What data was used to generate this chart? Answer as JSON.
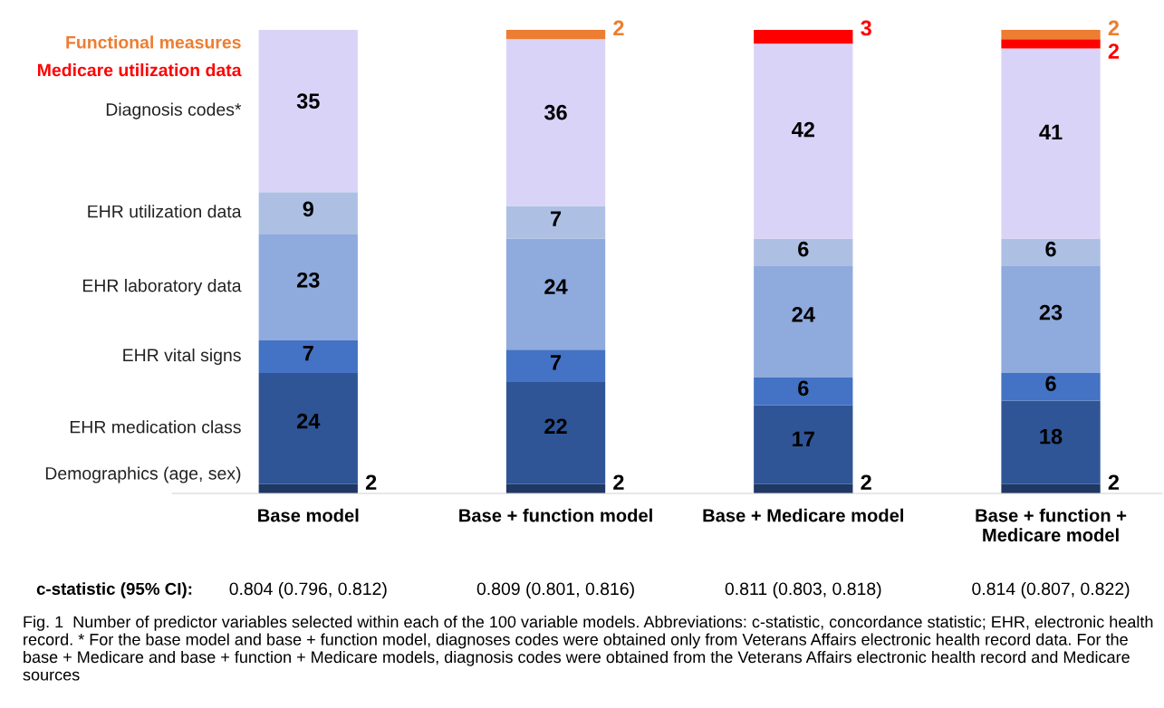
{
  "chart_data": {
    "type": "bar",
    "stacked": true,
    "data_labels": true,
    "legend": "left",
    "categories": [
      "Base model",
      "Base + function model",
      "Base + Medicare model",
      "Base + function +\nMedicare model"
    ],
    "series": [
      {
        "name": "Demographics (age, sex)",
        "color": "#1f3864",
        "values": [
          2,
          2,
          2,
          2
        ]
      },
      {
        "name": "EHR medication class",
        "color": "#2f5597",
        "values": [
          24,
          22,
          17,
          18
        ]
      },
      {
        "name": "EHR vital signs",
        "color": "#4472c4",
        "values": [
          7,
          7,
          6,
          6
        ]
      },
      {
        "name": "EHR laboratory data",
        "color": "#8faadc",
        "values": [
          23,
          24,
          24,
          23
        ]
      },
      {
        "name": "EHR utilization data",
        "color": "#adc0e4",
        "values": [
          9,
          7,
          6,
          6
        ]
      },
      {
        "name": "Diagnosis codes*",
        "color": "#d9d4f7",
        "values": [
          35,
          36,
          42,
          41
        ]
      },
      {
        "name": "Medicare utilization data",
        "color": "#ff0000",
        "values": [
          null,
          null,
          3,
          2
        ]
      },
      {
        "name": "Functional measures",
        "color": "#ed7d31",
        "values": [
          null,
          2,
          null,
          2
        ]
      }
    ],
    "annotations": [
      "c-statistic (95% CI):",
      "0.804 (0.796, 0.812)",
      "0.809 (0.801, 0.816)",
      "0.811 (0.803, 0.818)",
      "0.814 (0.807, 0.822)",
      "Fig. 1  Number of predictor variables selected within each of the 100 variable models. Abbreviations: c-statistic, concordance statistic; EHR, electronic health record. * For the base model and base + function model, diagnoses codes were obtained only from Veterans Affairs electronic health record data. For the base + Medicare and base + function + Medicare models, diagnosis codes were obtained from the Veterans Affairs electronic health record and Medicare sources"
    ]
  }
}
